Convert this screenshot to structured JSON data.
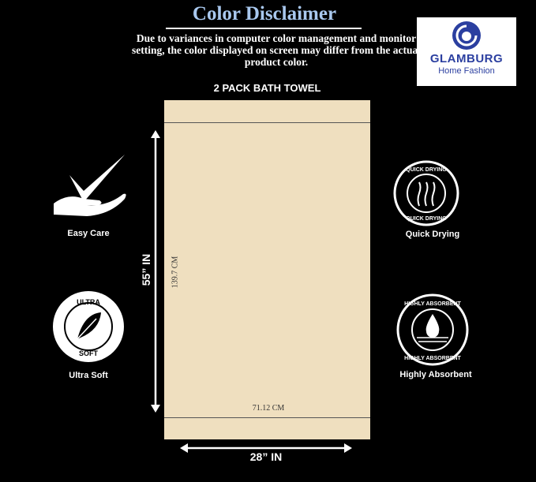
{
  "header": {
    "title": "Color Disclaimer",
    "disclaimer": "Due to variances in computer color management and monitor setting, the color displayed on screen may differ from the actual product color."
  },
  "logo": {
    "brand": "GLAMBURG",
    "tagline": "Home Fashion",
    "color": "#2b3fa0"
  },
  "product": {
    "title": "2 PACK BATH TOWEL",
    "towel_color": "#efdfbf",
    "height_in": "55” IN",
    "width_in": "28” IN",
    "height_cm": "139.7 CM",
    "width_cm": "71.12 CM"
  },
  "features": [
    {
      "label": "Easy Care",
      "icon": "hand-check-icon"
    },
    {
      "label": "Ultra Soft",
      "icon": "feather-badge-icon",
      "badge_top": "ULTRA",
      "badge_bottom": "SOFT"
    },
    {
      "label": "Quick Drying",
      "icon": "quick-drying-badge-icon",
      "badge_text": "QUICK DRYING"
    },
    {
      "label": "Highly Absorbent",
      "icon": "water-drop-badge-icon",
      "badge_text": "HIGHLY ABSORBENT"
    }
  ]
}
